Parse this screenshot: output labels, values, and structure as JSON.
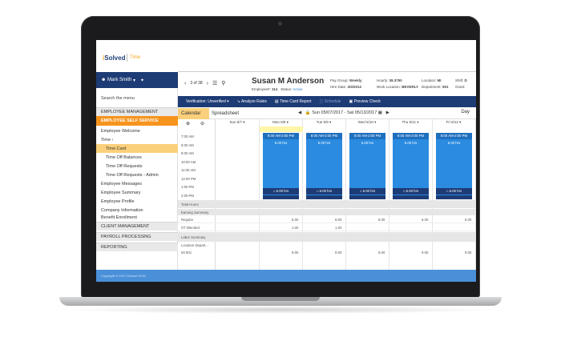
{
  "app": {
    "logo_main": "i",
    "logo_rest": "Solved",
    "logo_sub": "Time"
  },
  "user": {
    "name": "Mark Smith",
    "caret": "▾",
    "pin_icon": "pin-icon"
  },
  "pager": {
    "text": "3 of 38"
  },
  "employee": {
    "name": "Susan M Anderson",
    "number_label": "Employee#:",
    "number": "114",
    "status_label": "Status:",
    "status": "Active",
    "pay_group_label": "Pay Group:",
    "pay_group": "Weekly",
    "hire_date_label": "Hire Date:",
    "hire_date": "3/4/2012",
    "hourly_label": "Hourly:",
    "hourly": "39.3750",
    "work_location_label": "Work Location:",
    "work_location": "BEVERLY",
    "location_label": "Location:",
    "location": "MI",
    "department_label": "Department:",
    "department": "501",
    "shift_label": "Shift:",
    "shift": "D",
    "grant_label": "Grant:"
  },
  "sidebar": {
    "search_placeholder": "Search the menu",
    "items": [
      {
        "label": "EMPLOYEE MANAGEMENT",
        "kind": "cat"
      },
      {
        "label": "EMPLOYEE SELF SERVICE",
        "kind": "active"
      },
      {
        "label": "Employee Welcome",
        "kind": "sub"
      },
      {
        "label": "Time ‹",
        "kind": "sub"
      },
      {
        "label": "Time Card",
        "kind": "sel"
      },
      {
        "label": "Time Off Balances",
        "kind": "sub2"
      },
      {
        "label": "Time Off Requests",
        "kind": "sub2"
      },
      {
        "label": "Time Off Requests - Admin",
        "kind": "sub2"
      },
      {
        "label": "Employee Messages",
        "kind": "sub"
      },
      {
        "label": "Employee Summary",
        "kind": "sub"
      },
      {
        "label": "Employee Profile",
        "kind": "sub"
      },
      {
        "label": "Company Information",
        "kind": "sub"
      },
      {
        "label": "Benefit Enrollment",
        "kind": "sub"
      },
      {
        "label": "CLIENT MANAGEMENT",
        "kind": "cat"
      },
      {
        "label": "PAYROLL PROCESSING",
        "kind": "cat"
      },
      {
        "label": "REPORTING",
        "kind": "cat"
      }
    ]
  },
  "toolbar": {
    "verification": "Verification: Unverified ▾",
    "analyze": "↘ Analyze Rules",
    "timecard_report": "▤ Time Card Report",
    "schedule": "▢ Schedule",
    "preview": "▣ Preview Check"
  },
  "view": {
    "calendar": "Calendar",
    "spreadsheet": "Spreadsheet",
    "date_range": "Sun 05/07/2017 - Sat 05/13/2017",
    "day": "Day"
  },
  "grid": {
    "times": [
      "7:00 AM",
      "8:00 AM",
      "9:00 AM",
      "10:00 AM",
      "11:00 AM",
      "12:00 PM",
      "1:00 PM",
      "2:00 PM",
      "3:00 PM"
    ],
    "days": [
      "Sun 5/7",
      "Mon 5/8",
      "Tue 5/9",
      "Wed 5/10",
      "Thu 5/11",
      "Fri 5/12"
    ],
    "shift_label": "8:00 AM-2:00 PM",
    "shift_hours": "6.00 hrs",
    "meal_label": "6.00 hrs",
    "totals": {
      "total_hours": "Total Hours",
      "earning_summary": "Earning Summary",
      "regular": "Regular",
      "ot_blended": "OT Blended",
      "labor_summary": "Labor Summary",
      "labor_cols": "Location   Depart...",
      "labor_row": "MI      501",
      "regular_values": [
        "8.00",
        "8.00",
        "8.00",
        "8.00",
        "8.00"
      ],
      "ot_values": [
        "1.00",
        "1.00"
      ],
      "labor_values": [
        "9.00",
        "9.00",
        "9.00",
        "9.00",
        "9.00"
      ]
    }
  },
  "footer": {
    "text": "Copyright © 2017 iSolved HCM"
  }
}
